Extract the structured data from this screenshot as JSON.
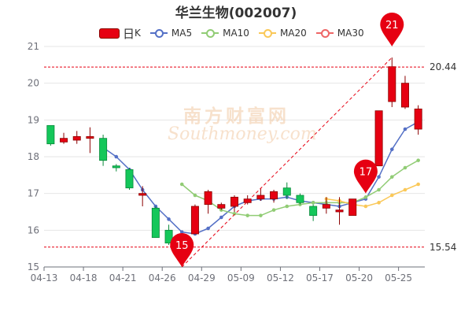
{
  "title": "华兰生物(002007)",
  "legend": [
    {
      "label": "日",
      "suffix": "K",
      "color": "#e60012",
      "kind": "candle"
    },
    {
      "label": "MA5",
      "color": "#5470c6",
      "kind": "line"
    },
    {
      "label": "MA10",
      "color": "#91cc75",
      "kind": "line"
    },
    {
      "label": "MA20",
      "color": "#fac858",
      "kind": "line"
    },
    {
      "label": "MA30",
      "color": "#ee6666",
      "kind": "line"
    }
  ],
  "watermark": {
    "top": "南方财富网",
    "bottom": "Southmoney.com"
  },
  "colors": {
    "up": "#e60012",
    "down": "#14c75a",
    "up_border": "#8b0000",
    "down_border": "#0a8a3a",
    "grid": "#e6e6e6",
    "axis": "#6e7079"
  },
  "chart_data": {
    "type": "candlestick",
    "title": "华兰生物(002007)",
    "ylim": [
      15,
      21
    ],
    "yticks": [
      15,
      16,
      17,
      18,
      19,
      20,
      21
    ],
    "xtick_labels": [
      {
        "index": 0,
        "label": "04-13"
      },
      {
        "index": 3,
        "label": "04-18"
      },
      {
        "index": 6,
        "label": "04-21"
      },
      {
        "index": 9,
        "label": "04-26"
      },
      {
        "index": 12,
        "label": "04-29"
      },
      {
        "index": 15,
        "label": "05-09"
      },
      {
        "index": 18,
        "label": "05-12"
      },
      {
        "index": 21,
        "label": "05-17"
      },
      {
        "index": 24,
        "label": "05-20"
      },
      {
        "index": 27,
        "label": "05-25"
      }
    ],
    "ohlc": [
      [
        18.85,
        18.35,
        18.85,
        18.3
      ],
      [
        18.4,
        18.5,
        18.65,
        18.35
      ],
      [
        18.45,
        18.55,
        18.7,
        18.35
      ],
      [
        18.5,
        18.55,
        18.8,
        18.1
      ],
      [
        18.5,
        17.9,
        18.6,
        17.75
      ],
      [
        17.75,
        17.7,
        17.8,
        17.6
      ],
      [
        17.65,
        17.15,
        17.7,
        17.1
      ],
      [
        16.95,
        17.0,
        17.2,
        16.65
      ],
      [
        16.6,
        15.8,
        16.65,
        15.8
      ],
      [
        16.0,
        15.65,
        16.15,
        15.6
      ],
      [
        15.85,
        15.55,
        15.9,
        15.5
      ],
      [
        15.9,
        16.65,
        16.7,
        15.9
      ],
      [
        16.7,
        17.05,
        17.1,
        16.45
      ],
      [
        16.6,
        16.7,
        16.75,
        16.55
      ],
      [
        16.65,
        16.9,
        16.95,
        16.5
      ],
      [
        16.75,
        16.85,
        16.95,
        16.7
      ],
      [
        16.85,
        16.95,
        17.15,
        16.8
      ],
      [
        16.85,
        17.05,
        17.1,
        16.75
      ],
      [
        17.15,
        16.95,
        17.3,
        16.85
      ],
      [
        16.95,
        16.75,
        17.0,
        16.7
      ],
      [
        16.65,
        16.4,
        16.7,
        16.25
      ],
      [
        16.6,
        16.7,
        16.9,
        16.45
      ],
      [
        16.5,
        16.55,
        16.9,
        16.15
      ],
      [
        16.4,
        16.85,
        16.85,
        16.4
      ],
      [
        17.65,
        17.5,
        17.7,
        17.1
      ],
      [
        17.75,
        19.25,
        19.25,
        17.75
      ],
      [
        19.5,
        20.45,
        20.7,
        19.35
      ],
      [
        19.35,
        20.0,
        20.2,
        19.3
      ],
      [
        18.75,
        19.3,
        19.4,
        18.6
      ]
    ],
    "ma5": [
      null,
      null,
      null,
      null,
      18.25,
      18.0,
      17.65,
      17.1,
      16.65,
      16.3,
      15.95,
      15.9,
      16.05,
      16.35,
      16.65,
      16.8,
      16.85,
      16.85,
      16.9,
      16.8,
      16.75,
      16.7,
      16.65,
      16.75,
      16.85,
      17.45,
      18.2,
      18.75,
      18.95
    ],
    "ma10": [
      null,
      null,
      null,
      null,
      null,
      null,
      null,
      null,
      null,
      null,
      17.25,
      16.95,
      16.8,
      16.55,
      16.45,
      16.4,
      16.4,
      16.55,
      16.65,
      16.7,
      16.75,
      16.75,
      16.75,
      16.75,
      16.9,
      17.1,
      17.45,
      17.7,
      17.9
    ],
    "ma20": [
      null,
      null,
      null,
      null,
      null,
      null,
      null,
      null,
      null,
      null,
      null,
      null,
      null,
      null,
      null,
      null,
      null,
      null,
      null,
      null,
      null,
      16.85,
      16.8,
      16.7,
      16.65,
      16.75,
      16.95,
      17.1,
      17.25
    ],
    "ma30": [],
    "annotations": [
      {
        "type": "pin",
        "index": 10,
        "value": 15,
        "label": "15",
        "color": "#e60012"
      },
      {
        "type": "pin",
        "index": 24,
        "value": 17,
        "label": "17",
        "color": "#e60012"
      },
      {
        "type": "pin",
        "index": 26,
        "value": 21,
        "label": "21",
        "color": "#e60012"
      },
      {
        "type": "hline",
        "value": 20.44,
        "label": "20.44",
        "color": "#e60012"
      },
      {
        "type": "hline",
        "value": 15.54,
        "label": "15.54",
        "color": "#e60012"
      },
      {
        "type": "trendline",
        "from": {
          "index": 10,
          "value": 15
        },
        "to": {
          "index": 26,
          "value": 20.7
        },
        "color": "#e60012"
      }
    ]
  }
}
